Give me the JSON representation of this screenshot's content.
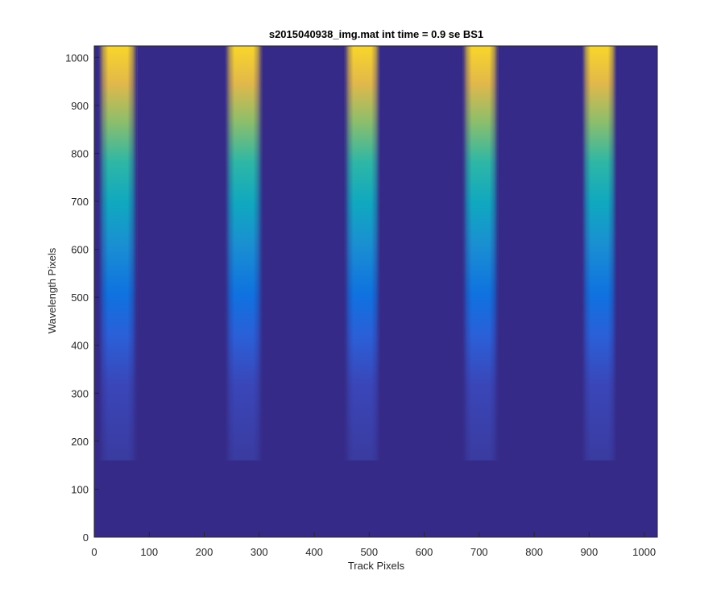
{
  "chart_data": {
    "type": "heatmap",
    "title": "s2015040938_img.mat int time = 0.9 se   BS1",
    "xlabel": "Track Pixels",
    "ylabel": "Wavelength Pixels",
    "xlim": [
      0,
      1024
    ],
    "ylim": [
      0,
      1024
    ],
    "xticks": [
      0,
      100,
      200,
      300,
      400,
      500,
      600,
      700,
      800,
      900,
      1000
    ],
    "yticks": [
      0,
      100,
      200,
      300,
      400,
      500,
      600,
      700,
      800,
      900,
      1000
    ],
    "grid": false,
    "colormap": "parula",
    "background_color": "#352A87",
    "bands": [
      {
        "x_start": 8,
        "x_end": 78,
        "y_start": 160,
        "y_end": 1024
      },
      {
        "x_start": 238,
        "x_end": 306,
        "y_start": 160,
        "y_end": 1024
      },
      {
        "x_start": 455,
        "x_end": 520,
        "y_start": 160,
        "y_end": 1024
      },
      {
        "x_start": 670,
        "x_end": 735,
        "y_start": 160,
        "y_end": 1024
      },
      {
        "x_start": 887,
        "x_end": 950,
        "y_start": 160,
        "y_end": 1024
      }
    ]
  }
}
